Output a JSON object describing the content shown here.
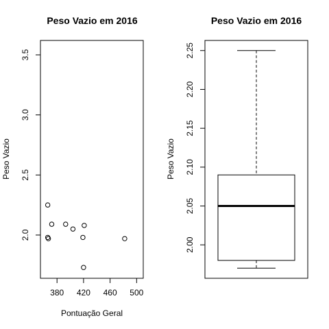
{
  "chart_data": [
    {
      "type": "scatter",
      "title": "Peso Vazio em 2016",
      "xlabel": "Pontuação Geral",
      "ylabel": "Peso Vazio",
      "xlim": [
        355,
        510
      ],
      "ylim": [
        1.64,
        3.62
      ],
      "xticks": [
        380,
        420,
        460,
        500
      ],
      "yticks": [
        2.0,
        2.5,
        3.0,
        3.5
      ],
      "ytick_labels": [
        "2.0",
        "2.5",
        "3.0",
        "3.5"
      ],
      "grid": false,
      "points": [
        {
          "x": 366,
          "y": 2.25
        },
        {
          "x": 366,
          "y": 1.98
        },
        {
          "x": 367,
          "y": 1.97
        },
        {
          "x": 372,
          "y": 2.09
        },
        {
          "x": 393,
          "y": 2.09
        },
        {
          "x": 404,
          "y": 2.05
        },
        {
          "x": 419,
          "y": 1.98
        },
        {
          "x": 421,
          "y": 2.08
        },
        {
          "x": 420,
          "y": 1.73
        },
        {
          "x": 482,
          "y": 1.97
        }
      ]
    },
    {
      "type": "box",
      "title": "Peso Vazio em 2016",
      "ylabel": "Peso Vazio",
      "ylim": [
        1.957,
        2.263
      ],
      "yticks": [
        2.0,
        2.05,
        2.1,
        2.15,
        2.2,
        2.25
      ],
      "ytick_labels": [
        "2.00",
        "2.05",
        "2.10",
        "2.15",
        "2.20",
        "2.25"
      ],
      "grid": false,
      "stats": {
        "min": 1.97,
        "q1": 1.98,
        "median": 2.05,
        "q3": 2.09,
        "max": 2.25
      }
    }
  ]
}
